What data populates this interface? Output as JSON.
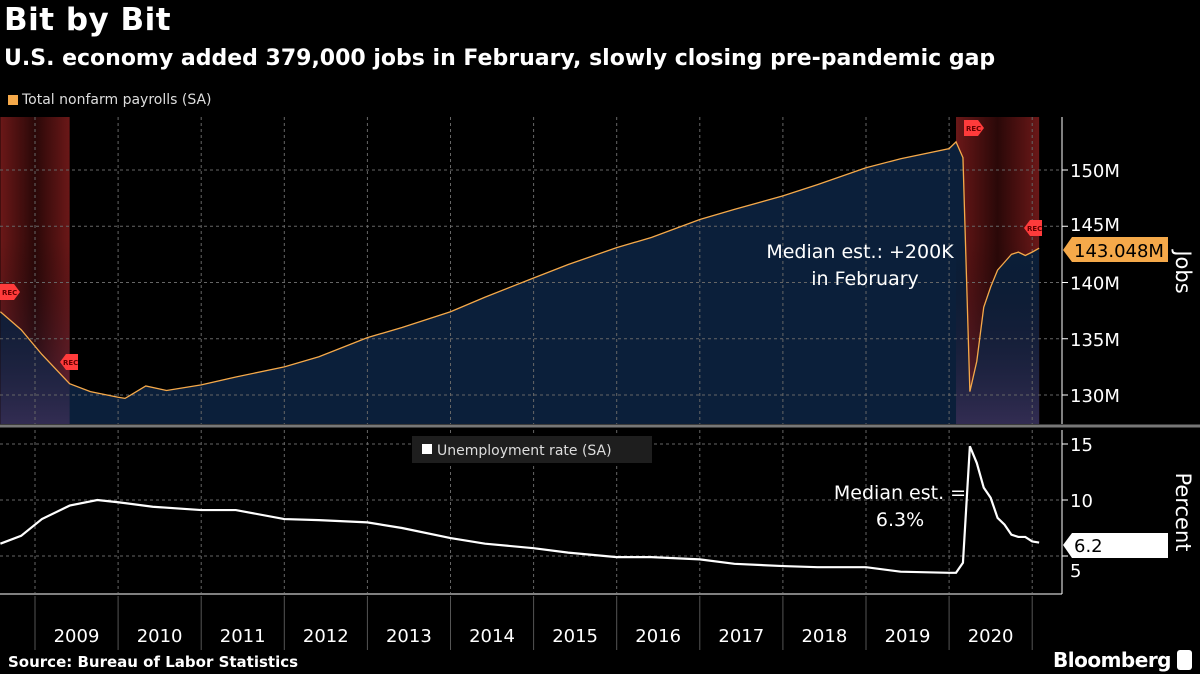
{
  "title": "Bit by Bit",
  "subtitle": "U.S. economy added 379,000 jobs in February, slowly closing pre-pandemic gap",
  "source": "Source: Bureau of Labor Statistics",
  "brand": "Bloomberg",
  "colors": {
    "payrolls": "#f5a94a",
    "area": "#0b1f3a",
    "unemployment": "#ffffff",
    "recession": "#6b1a1a",
    "rec_flag": "#ff3b3b"
  },
  "chart_data": [
    {
      "type": "area",
      "legend": "Total nonfarm payrolls (SA)",
      "ylabel": "Jobs",
      "yticks": [
        "130M",
        "135M",
        "140M",
        "145M",
        "150M"
      ],
      "ytick_values": [
        130,
        135,
        140,
        145,
        150
      ],
      "ylim": [
        127.2,
        154.5
      ],
      "unit": "millions",
      "last_value_label": "143.048M",
      "annotation": [
        "Median est.: +200K",
        "in February"
      ],
      "recession_label": "REC",
      "recessions": [
        [
          "2008-08",
          "2009-06"
        ],
        [
          "2020-02",
          "2021-02"
        ]
      ],
      "grid": true,
      "x": [
        "2008-08",
        "2008-11",
        "2009-02",
        "2009-06",
        "2009-09",
        "2010-01",
        "2010-02",
        "2010-05",
        "2010-08",
        "2011-01",
        "2011-06",
        "2012-01",
        "2012-06",
        "2013-01",
        "2013-06",
        "2014-01",
        "2014-06",
        "2015-01",
        "2015-06",
        "2016-01",
        "2016-06",
        "2017-01",
        "2017-06",
        "2018-01",
        "2018-06",
        "2019-01",
        "2019-06",
        "2020-01",
        "2020-02",
        "2020-03",
        "2020-04",
        "2020-05",
        "2020-06",
        "2020-07",
        "2020-08",
        "2020-09",
        "2020-10",
        "2020-11",
        "2020-12",
        "2021-01",
        "2021-02"
      ],
      "values": [
        137.4,
        135.8,
        133.6,
        131.0,
        130.3,
        129.8,
        129.7,
        130.8,
        130.4,
        130.9,
        131.6,
        132.5,
        133.4,
        135.1,
        136.0,
        137.4,
        138.7,
        140.4,
        141.6,
        143.1,
        144.0,
        145.6,
        146.5,
        147.7,
        148.7,
        150.2,
        151.0,
        151.9,
        152.5,
        151.1,
        130.3,
        133.0,
        137.8,
        139.6,
        141.1,
        141.8,
        142.5,
        142.7,
        142.4,
        142.7,
        143.048
      ]
    },
    {
      "type": "line",
      "legend": "Unemployment rate (SA)",
      "ylabel": "Percent",
      "yticks": [
        "5",
        "10",
        "15"
      ],
      "ytick_values": [
        5,
        10,
        15
      ],
      "ylim": [
        2.8,
        16.4
      ],
      "last_value_label": "6.2",
      "annotation": [
        "Median est. =",
        "6.3%"
      ],
      "grid": true,
      "x": [
        "2008-08",
        "2008-11",
        "2009-02",
        "2009-06",
        "2009-10",
        "2010-01",
        "2010-06",
        "2011-01",
        "2011-06",
        "2012-01",
        "2012-06",
        "2013-01",
        "2013-06",
        "2014-01",
        "2014-06",
        "2015-01",
        "2015-06",
        "2016-01",
        "2016-06",
        "2017-01",
        "2017-06",
        "2018-01",
        "2018-06",
        "2019-01",
        "2019-06",
        "2020-01",
        "2020-02",
        "2020-03",
        "2020-04",
        "2020-05",
        "2020-06",
        "2020-07",
        "2020-08",
        "2020-09",
        "2020-10",
        "2020-11",
        "2020-12",
        "2021-01",
        "2021-02"
      ],
      "values": [
        6.1,
        6.8,
        8.3,
        9.5,
        10.0,
        9.8,
        9.4,
        9.1,
        9.1,
        8.3,
        8.2,
        8.0,
        7.5,
        6.6,
        6.1,
        5.7,
        5.3,
        4.9,
        4.9,
        4.7,
        4.3,
        4.1,
        4.0,
        4.0,
        3.6,
        3.5,
        3.5,
        4.4,
        14.8,
        13.3,
        11.1,
        10.2,
        8.4,
        7.8,
        6.9,
        6.7,
        6.7,
        6.3,
        6.2
      ]
    }
  ],
  "xaxis": {
    "ticks": [
      "2009",
      "2010",
      "2011",
      "2012",
      "2013",
      "2014",
      "2015",
      "2016",
      "2017",
      "2018",
      "2019",
      "2020"
    ]
  }
}
